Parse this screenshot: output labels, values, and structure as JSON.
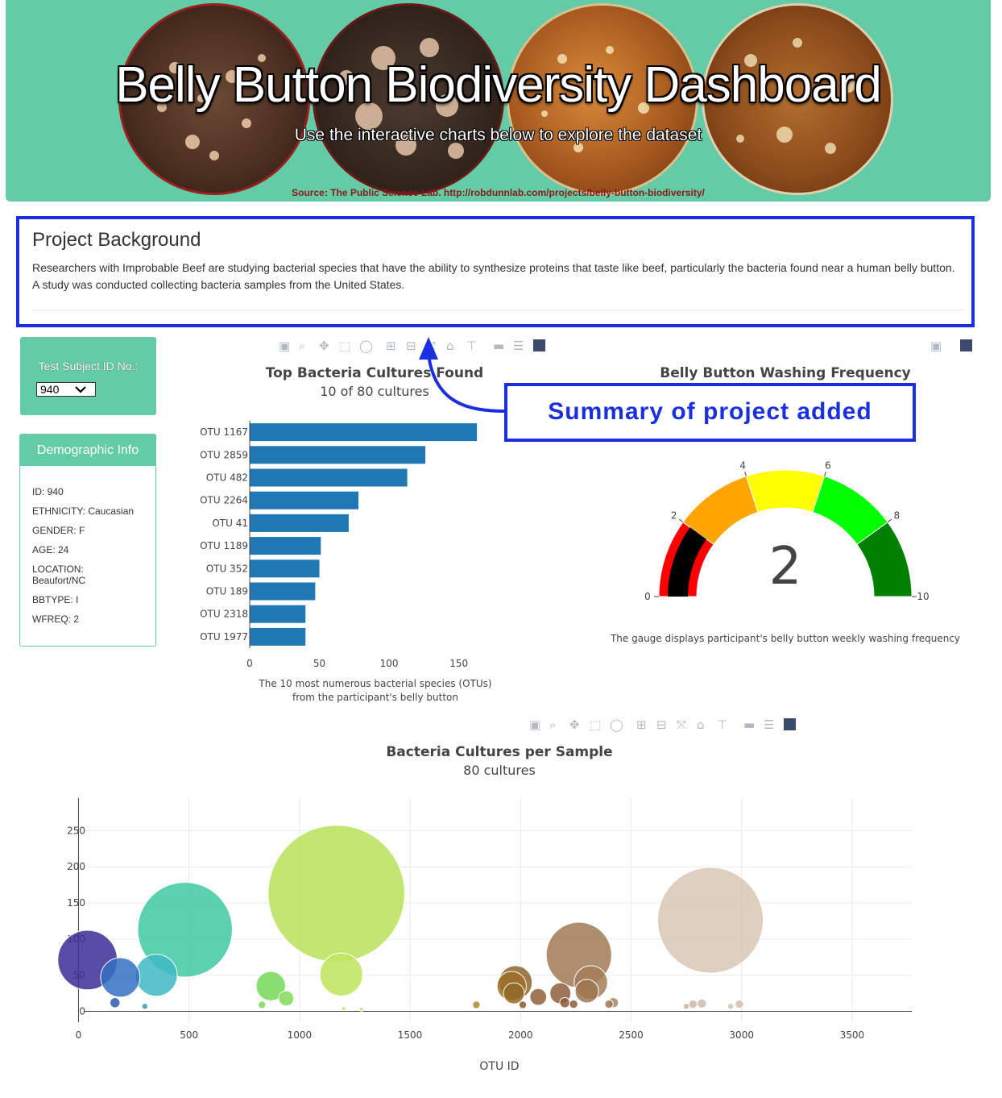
{
  "header": {
    "title": "Belly Button Biodiversity Dashboard",
    "subtitle": "Use the interactive charts below to explore the dataset",
    "source": "Source: The Public Science Lab. http://robdunnlab.com/projects/belly-button-biodiversity/"
  },
  "background": {
    "title": "Project Background",
    "text": "Researchers with Improbable Beef are studying bacterial species that have the ability to synthesize proteins that taste like beef, particularly the bacteria found near a human belly button. A study was conducted collecting bacteria samples from the United States."
  },
  "selector": {
    "label": "Test Subject ID No.:",
    "value": "940"
  },
  "demographic": {
    "title": "Demographic Info",
    "rows": [
      "ID: 940",
      "ETHNICITY: Caucasian",
      "GENDER: F",
      "AGE: 24",
      "LOCATION: Beaufort/NC",
      "BBTYPE: I",
      "WFREQ: 2"
    ]
  },
  "annotation": {
    "text": "Summary of project added"
  },
  "toolbar": {
    "icons": [
      "camera-icon",
      "zoom-icon",
      "pan-icon",
      "box-select-icon",
      "lasso-icon",
      "zoom-in-icon",
      "zoom-out-icon",
      "autoscale-icon",
      "reset-axes-icon",
      "spike-lines-icon",
      "hover-closest-icon",
      "hover-compare-icon",
      "plotly-logo-icon"
    ]
  },
  "chart_data": [
    {
      "type": "bar",
      "orientation": "h",
      "title": "Top Bacteria Cultures Found",
      "subtitle": "10 of 80 cultures",
      "caption_line1": "The 10 most numerous bacterial species (OTUs)",
      "caption_line2": "from the participant's belly button",
      "categories": [
        "OTU 1167",
        "OTU 2859",
        "OTU 482",
        "OTU 2264",
        "OTU 41",
        "OTU 1189",
        "OTU 352",
        "OTU 189",
        "OTU 2318",
        "OTU 1977"
      ],
      "values": [
        163,
        126,
        113,
        78,
        71,
        51,
        50,
        47,
        40,
        40
      ],
      "xticks": [
        0,
        50,
        100,
        150
      ],
      "xlim": [
        0,
        171
      ],
      "color": "#1f77b4"
    },
    {
      "type": "gauge",
      "title": "Belly Button Washing Frequency",
      "caption": "The gauge displays participant's belly button weekly washing frequency",
      "value": 2,
      "value_label": "2",
      "range": [
        0,
        10
      ],
      "ticks": [
        "0",
        "2",
        "4",
        "6",
        "8",
        "10"
      ],
      "steps": [
        {
          "range": [
            0,
            2
          ],
          "color": "#ff0000"
        },
        {
          "range": [
            2,
            4
          ],
          "color": "#ffa500"
        },
        {
          "range": [
            4,
            6
          ],
          "color": "#ffff00"
        },
        {
          "range": [
            6,
            8
          ],
          "color": "#00ff00"
        },
        {
          "range": [
            8,
            10
          ],
          "color": "#008000"
        }
      ],
      "bar_color": "#000000"
    },
    {
      "type": "scatter",
      "mode": "bubble",
      "title": "Bacteria Cultures per Sample",
      "subtitle": "80 cultures",
      "xlabel": "OTU ID",
      "xlim": [
        -100,
        3770
      ],
      "ylim": [
        -15,
        295
      ],
      "xticks": [
        0,
        500,
        1000,
        1500,
        2000,
        2500,
        3000,
        3500
      ],
      "yticks": [
        0,
        50,
        100,
        150,
        200,
        250
      ],
      "points": [
        {
          "x": 41,
          "y": 71,
          "color": "#3a2d96"
        },
        {
          "x": 165,
          "y": 12,
          "color": "#2e5bb0"
        },
        {
          "x": 189,
          "y": 47,
          "color": "#3470c0"
        },
        {
          "x": 300,
          "y": 7,
          "color": "#3098b5"
        },
        {
          "x": 352,
          "y": 50,
          "color": "#3fb8c4"
        },
        {
          "x": 482,
          "y": 113,
          "color": "#3fc9a2"
        },
        {
          "x": 830,
          "y": 9,
          "color": "#7ad95a"
        },
        {
          "x": 870,
          "y": 35,
          "color": "#73d856"
        },
        {
          "x": 940,
          "y": 18,
          "color": "#80db55"
        },
        {
          "x": 1167,
          "y": 163,
          "color": "#b8e25a"
        },
        {
          "x": 1189,
          "y": 51,
          "color": "#bde55c"
        },
        {
          "x": 1200,
          "y": 4,
          "color": "#c8e06a"
        },
        {
          "x": 1280,
          "y": 3,
          "color": "#d0d878"
        },
        {
          "x": 1800,
          "y": 9,
          "color": "#a88a2a"
        },
        {
          "x": 1960,
          "y": 35,
          "color": "#9a7028"
        },
        {
          "x": 1970,
          "y": 25,
          "color": "#93682a"
        },
        {
          "x": 1977,
          "y": 40,
          "color": "#8f642b"
        },
        {
          "x": 2010,
          "y": 9,
          "color": "#8a5c2e"
        },
        {
          "x": 2080,
          "y": 20,
          "color": "#90603a"
        },
        {
          "x": 2180,
          "y": 25,
          "color": "#8e5e3c"
        },
        {
          "x": 2200,
          "y": 12,
          "color": "#8a5a38"
        },
        {
          "x": 2240,
          "y": 10,
          "color": "#8c5c3a"
        },
        {
          "x": 2264,
          "y": 78,
          "color": "#a07a55"
        },
        {
          "x": 2318,
          "y": 40,
          "color": "#a47e5a"
        },
        {
          "x": 2300,
          "y": 28,
          "color": "#9e7650"
        },
        {
          "x": 2400,
          "y": 10,
          "color": "#a07855"
        },
        {
          "x": 2420,
          "y": 12,
          "color": "#a88460"
        },
        {
          "x": 2750,
          "y": 7,
          "color": "#c9b19e"
        },
        {
          "x": 2780,
          "y": 10,
          "color": "#cdb8a5"
        },
        {
          "x": 2820,
          "y": 11,
          "color": "#d0bba8"
        },
        {
          "x": 2859,
          "y": 126,
          "color": "#d8c7b6"
        },
        {
          "x": 2950,
          "y": 7,
          "color": "#d5c3b2"
        },
        {
          "x": 2990,
          "y": 10,
          "color": "#d2bfae"
        }
      ]
    }
  ]
}
